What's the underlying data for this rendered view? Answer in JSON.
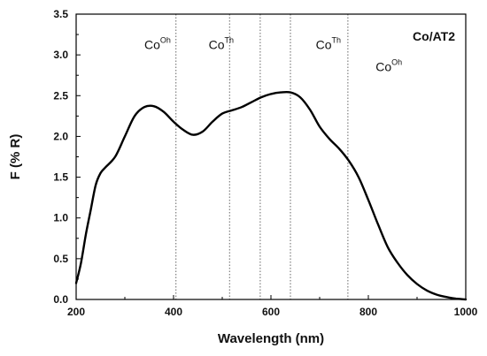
{
  "chart_data": {
    "type": "line",
    "title": "",
    "xlabel": "Wavelength (nm)",
    "ylabel": "F (% R)",
    "xlim": [
      200,
      1000
    ],
    "ylim": [
      0,
      3.5
    ],
    "x_ticks": [
      200,
      400,
      600,
      800,
      1000
    ],
    "y_ticks": [
      0.0,
      0.5,
      1.0,
      1.5,
      2.0,
      2.5,
      3.0,
      3.5
    ],
    "x_tick_labels": [
      "200",
      "400",
      "600",
      "800",
      "1000"
    ],
    "y_tick_labels": [
      "0.0",
      "0.5",
      "1.0",
      "1.5",
      "2.0",
      "2.5",
      "3.0",
      "3.5"
    ],
    "grid": false,
    "legend_text": "Co/AT2",
    "reference_lines_x": [
      405,
      515,
      578,
      640,
      758
    ],
    "annotations": [
      {
        "base": "Co",
        "sup": "Oh",
        "x": 340,
        "y": 3.07
      },
      {
        "base": "Co",
        "sup": "Th",
        "x": 472,
        "y": 3.07
      },
      {
        "base": "Co",
        "sup": "Th",
        "x": 692,
        "y": 3.07
      },
      {
        "base": "Co",
        "sup": "Oh",
        "x": 815,
        "y": 2.8
      }
    ],
    "series": [
      {
        "color": "#000000",
        "x": [
          200,
          210,
          220,
          230,
          240,
          250,
          260,
          280,
          300,
          320,
          340,
          360,
          380,
          400,
          420,
          440,
          460,
          480,
          500,
          520,
          540,
          560,
          580,
          600,
          620,
          640,
          660,
          680,
          700,
          720,
          740,
          760,
          780,
          800,
          820,
          840,
          860,
          880,
          900,
          920,
          940,
          960,
          980,
          1000
        ],
        "y": [
          0.2,
          0.45,
          0.8,
          1.1,
          1.4,
          1.55,
          1.62,
          1.75,
          2.0,
          2.25,
          2.36,
          2.37,
          2.3,
          2.18,
          2.08,
          2.02,
          2.06,
          2.18,
          2.28,
          2.32,
          2.36,
          2.42,
          2.48,
          2.52,
          2.54,
          2.54,
          2.48,
          2.33,
          2.12,
          1.97,
          1.85,
          1.7,
          1.5,
          1.22,
          0.92,
          0.64,
          0.45,
          0.3,
          0.19,
          0.11,
          0.06,
          0.03,
          0.01,
          0.0
        ]
      }
    ]
  }
}
